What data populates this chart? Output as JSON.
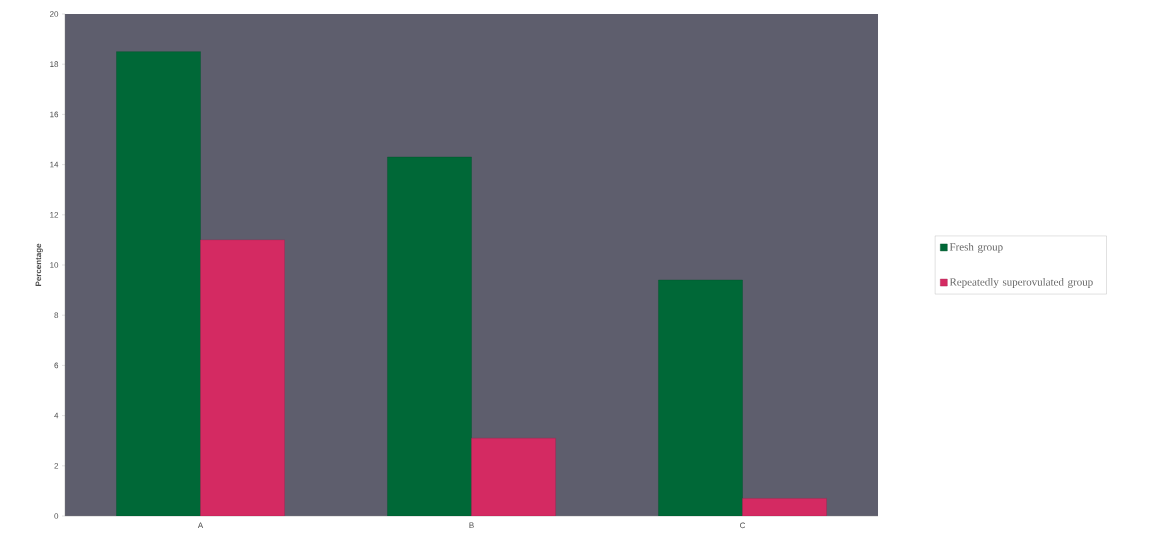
{
  "chart_data": {
    "type": "bar",
    "ylabel": "Percentage",
    "categories": [
      "A",
      "B",
      "C"
    ],
    "series": [
      {
        "name": "Fresh group",
        "color": "#006837",
        "values": [
          18.5,
          14.3,
          9.4
        ]
      },
      {
        "name": "Repeatedly superovulated group",
        "color": "#d42a62",
        "values": [
          11.0,
          3.1,
          0.7
        ]
      }
    ],
    "ylim": [
      0,
      20
    ],
    "yticks": [
      0,
      2,
      4,
      6,
      8,
      10,
      12,
      14,
      16,
      18,
      20
    ],
    "grid": false,
    "legend": "right"
  }
}
